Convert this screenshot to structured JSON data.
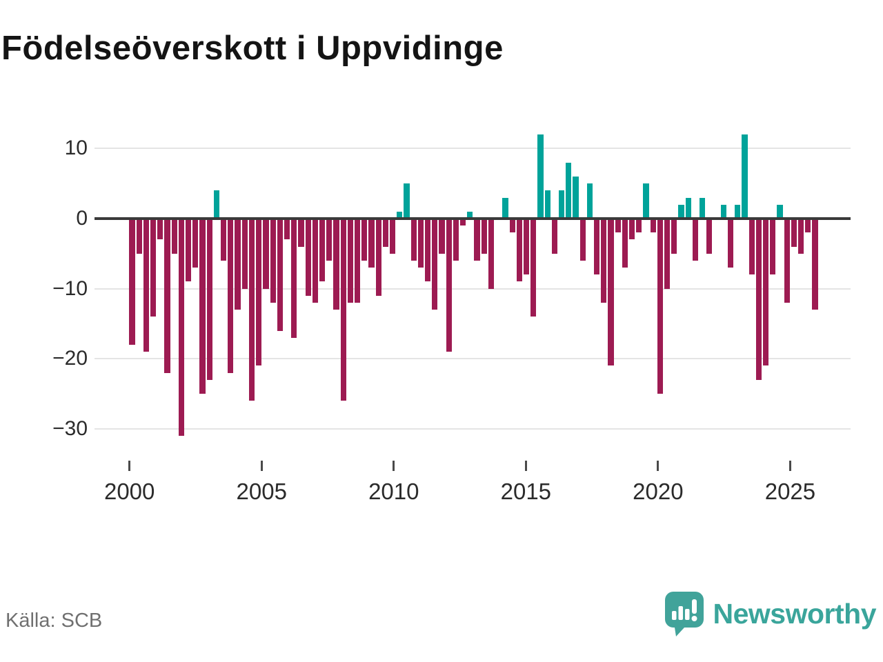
{
  "title": "Födelseöverskott i Uppvidinge",
  "source": {
    "label": "Källa: SCB"
  },
  "brand": {
    "name": "Newsworthy",
    "color": "#3aa59b",
    "icon": "newsworthy-speech-bubble-chart-icon"
  },
  "colors": {
    "positive": "#00a39a",
    "negative": "#9d1b52",
    "zero_line": "#3a3a3a",
    "gridline": "#e4e4e4",
    "axis_text": "#2b2b2b",
    "source_text": "#707070"
  },
  "chart_data": {
    "type": "bar",
    "title": "Födelseöverskott i Uppvidinge",
    "xlabel": "",
    "ylabel": "",
    "x_tick_labels": [
      "2000",
      "2005",
      "2010",
      "2015",
      "2020",
      "2025"
    ],
    "y_ticks": [
      10,
      0,
      -10,
      -20,
      -30
    ],
    "y_tick_labels": [
      "10",
      "0",
      "−10",
      "−20",
      "−30"
    ],
    "ylim": [
      -33,
      13
    ],
    "x_range_years": [
      2000,
      2026
    ],
    "grid": "horizontal",
    "legend": "none",
    "bar_color_rule": "teal when value >= 0, dark red when value < 0",
    "values": [
      -18,
      -5,
      -19,
      -14,
      -3,
      -22,
      -5,
      -31,
      -9,
      -7,
      -25,
      -23,
      4,
      -6,
      -22,
      -13,
      -10,
      -26,
      -21,
      -10,
      -12,
      -16,
      -3,
      -17,
      -4,
      -11,
      -12,
      -9,
      -6,
      -13,
      -26,
      -12,
      -12,
      -6,
      -7,
      -11,
      -4,
      -5,
      1,
      5,
      -6,
      -7,
      -9,
      -13,
      -5,
      -19,
      -6,
      -1,
      1,
      -6,
      -5,
      -10,
      0,
      3,
      -2,
      -9,
      -8,
      -14,
      12,
      4,
      -5,
      4,
      8,
      6,
      -6,
      5,
      -8,
      -12,
      -21,
      -2,
      -7,
      -3,
      -2,
      5,
      -2,
      -25,
      -10,
      -5,
      2,
      3,
      -6,
      3,
      -5,
      0,
      2,
      -7,
      2,
      12,
      -8,
      -23,
      -21,
      -8,
      2,
      -12,
      -4,
      -5,
      -2,
      -13
    ]
  }
}
